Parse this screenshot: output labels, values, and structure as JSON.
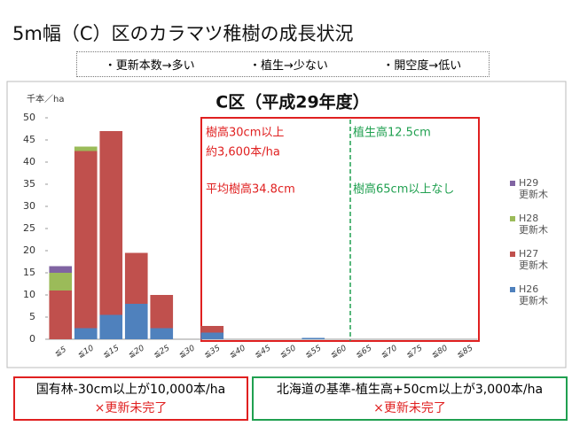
{
  "slide": {
    "title": "5m幅（C）区のカラマツ稚樹の成長状況",
    "notes": [
      "・更新本数→多い",
      "・植生→少ない",
      "・開空度→低い"
    ],
    "boxes": [
      {
        "text": "国有林-30cm以上が10,000本/ha",
        "status": "×更新未完了"
      },
      {
        "text": "北海道の基準-植生高+50cm以上が3,000本/ha",
        "status": "×更新未完了"
      }
    ]
  },
  "chart_data": {
    "type": "bar",
    "stacked": true,
    "title": "C区（平成29年度）",
    "y_label": "千本／ha",
    "categories": [
      "≦5",
      "≦10",
      "≦15",
      "≦20",
      "≦25",
      "≦30",
      "≦35",
      "≦40",
      "≦45",
      "≦50",
      "≦55",
      "≦60",
      "≦65",
      "≦70",
      "≦75",
      "≦80",
      "≦85"
    ],
    "series": [
      {
        "name": "H26\n更新木",
        "color": "#4f81bd",
        "values": [
          0,
          2.5,
          5.5,
          8,
          2.5,
          0,
          1.5,
          0,
          0,
          0,
          0.3,
          0,
          0,
          0,
          0,
          0,
          0
        ]
      },
      {
        "name": "H27\n更新木",
        "color": "#c0504d",
        "values": [
          11,
          40,
          41.5,
          11.5,
          7.5,
          0,
          1.5,
          0,
          0,
          0,
          0,
          0,
          0,
          0,
          0,
          0,
          0
        ]
      },
      {
        "name": "H28\n更新木",
        "color": "#9bbb59",
        "values": [
          4,
          1,
          0,
          0,
          0,
          0,
          0,
          0,
          0,
          0,
          0,
          0,
          0,
          0,
          0,
          0,
          0
        ]
      },
      {
        "name": "H29\n更新木",
        "color": "#8064a2",
        "values": [
          1.5,
          0,
          0,
          0,
          0,
          0,
          0,
          0,
          0,
          0,
          0,
          0,
          0,
          0,
          0,
          0,
          0
        ]
      }
    ],
    "ylim": [
      0,
      50
    ],
    "yticks": [
      0,
      5,
      10,
      15,
      20,
      25,
      30,
      35,
      40,
      45,
      50
    ],
    "annotations": [
      {
        "text": "樹高30cm以上",
        "color": "#e02020"
      },
      {
        "text": "約3,600本/ha",
        "color": "#e02020"
      },
      {
        "text": "平均樹高34.8cm",
        "color": "#e02020"
      },
      {
        "text": "植生高12.5cm",
        "color": "#20a050"
      },
      {
        "text": "樹高65cm以上なし",
        "color": "#20a050"
      }
    ]
  }
}
